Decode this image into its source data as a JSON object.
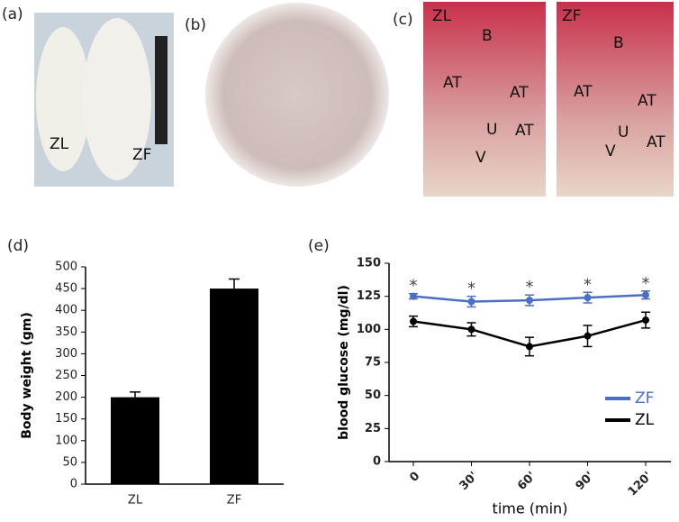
{
  "panel_labels": [
    "(a)",
    "(b)",
    "(c)",
    "(d)",
    "(e)"
  ],
  "photos": {
    "a": [
      "ZL",
      "ZF"
    ],
    "c_left": [
      "ZL",
      "B",
      "AT",
      "AT",
      "U",
      "AT",
      "V"
    ],
    "c_right": [
      "ZF",
      "B",
      "AT",
      "AT",
      "U",
      "AT",
      "V"
    ]
  },
  "chart_data": [
    {
      "type": "bar",
      "ylabel": "Body weight (gm)",
      "categories": [
        "ZL",
        "ZF"
      ],
      "values": [
        200,
        450
      ],
      "errors": [
        12,
        22
      ],
      "color": "#000000",
      "ylim": [
        0,
        500
      ],
      "yticks": [
        0,
        50,
        100,
        150,
        200,
        250,
        300,
        350,
        400,
        450,
        500
      ]
    },
    {
      "type": "line",
      "xlabel": "time (min)",
      "ylabel": "blood glucose (mg/dl)",
      "categories": [
        "0",
        "30'",
        "60'",
        "90'",
        "120'"
      ],
      "series": [
        {
          "name": "ZF",
          "color": "#4a6fc4",
          "values": [
            125,
            121,
            122,
            124,
            126
          ],
          "errors": [
            2,
            4,
            4,
            4,
            3
          ]
        },
        {
          "name": "ZL",
          "color": "#000000",
          "values": [
            106,
            100,
            87,
            95,
            107
          ],
          "errors": [
            4,
            5,
            7,
            8,
            6
          ]
        }
      ],
      "annotations": [
        "*",
        "*",
        "*",
        "*",
        "*"
      ],
      "ylim": [
        0,
        150
      ],
      "yticks": [
        0,
        25,
        50,
        75,
        100,
        125,
        150
      ],
      "legend": "lower right"
    }
  ]
}
